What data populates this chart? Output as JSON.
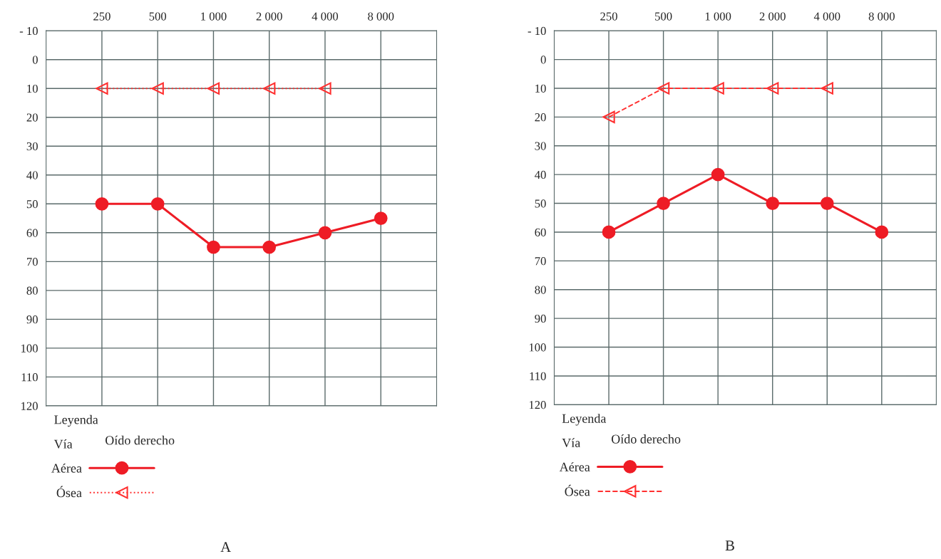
{
  "chart_data": [
    {
      "type": "line",
      "title": "A",
      "legend_title": "Leyenda",
      "annotations": [
        "Vía",
        "Oído derecho"
      ],
      "categories": [
        "250",
        "500",
        "1 000",
        "2 000",
        "4 000",
        "8 000"
      ],
      "series": [
        {
          "name": "Aérea",
          "color": "#ee1c25",
          "values": [
            50,
            50,
            65,
            65,
            60,
            55
          ],
          "marker": "circle",
          "line_style": "solid"
        },
        {
          "name": "Ósea",
          "color": "#ff3030",
          "values": [
            10,
            10,
            10,
            10,
            10,
            null
          ],
          "marker": "triangle",
          "line_style": "dotted"
        }
      ],
      "ylim": [
        120,
        -10
      ],
      "yticks": [
        {
          "value": -10,
          "label": "- 10"
        },
        0,
        10,
        20,
        30,
        40,
        50,
        60,
        70,
        80,
        90,
        100,
        110,
        120
      ],
      "grid": true,
      "legend": "bottom left"
    },
    {
      "type": "line",
      "title": "B",
      "legend_title": "Leyenda",
      "annotations": [
        "Vía",
        "Oído derecho"
      ],
      "categories": [
        "250",
        "500",
        "1 000",
        "2 000",
        "4 000",
        "8 000"
      ],
      "series": [
        {
          "name": "Aérea",
          "color": "#ee1c25",
          "values": [
            60,
            50,
            40,
            50,
            50,
            60
          ],
          "marker": "circle",
          "line_style": "solid"
        },
        {
          "name": "Ósea",
          "color": "#ff3030",
          "values": [
            20,
            10,
            10,
            10,
            10,
            null
          ],
          "marker": "triangle",
          "line_style": "dashed"
        }
      ],
      "ylim": [
        120,
        -10
      ],
      "yticks": [
        {
          "value": -10,
          "label": "- 10"
        },
        0,
        10,
        20,
        30,
        40,
        50,
        60,
        70,
        80,
        90,
        100,
        110,
        120
      ],
      "grid": true,
      "legend": "bottom left"
    }
  ]
}
